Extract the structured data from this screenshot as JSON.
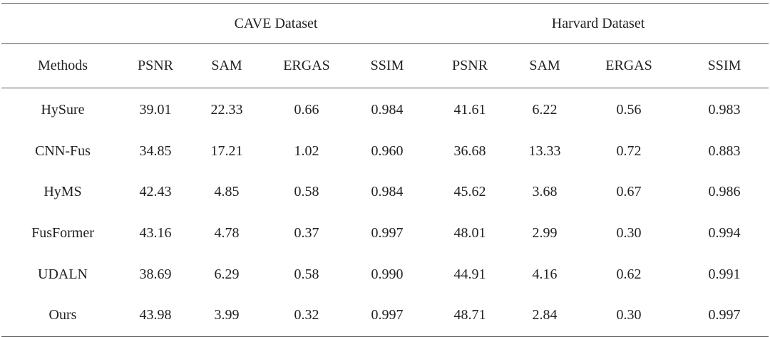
{
  "groups": {
    "cave": "CAVE Dataset",
    "harvard": "Harvard Dataset"
  },
  "columns": [
    "Methods",
    "PSNR",
    "SAM",
    "ERGAS",
    "SSIM",
    "PSNR",
    "SAM",
    "ERGAS",
    "SSIM"
  ],
  "rows": [
    [
      "HySure",
      "39.01",
      "22.33",
      "0.66",
      "0.984",
      "41.61",
      "6.22",
      "0.56",
      "0.983"
    ],
    [
      "CNN-Fus",
      "34.85",
      "17.21",
      "1.02",
      "0.960",
      "36.68",
      "13.33",
      "0.72",
      "0.883"
    ],
    [
      "HyMS",
      "42.43",
      "4.85",
      "0.58",
      "0.984",
      "45.62",
      "3.68",
      "0.67",
      "0.986"
    ],
    [
      "FusFormer",
      "43.16",
      "4.78",
      "0.37",
      "0.997",
      "48.01",
      "2.99",
      "0.30",
      "0.994"
    ],
    [
      "UDALN",
      "38.69",
      "6.29",
      "0.58",
      "0.990",
      "44.91",
      "4.16",
      "0.62",
      "0.991"
    ],
    [
      "Ours",
      "43.98",
      "3.99",
      "0.32",
      "0.997",
      "48.71",
      "2.84",
      "0.30",
      "0.997"
    ]
  ]
}
